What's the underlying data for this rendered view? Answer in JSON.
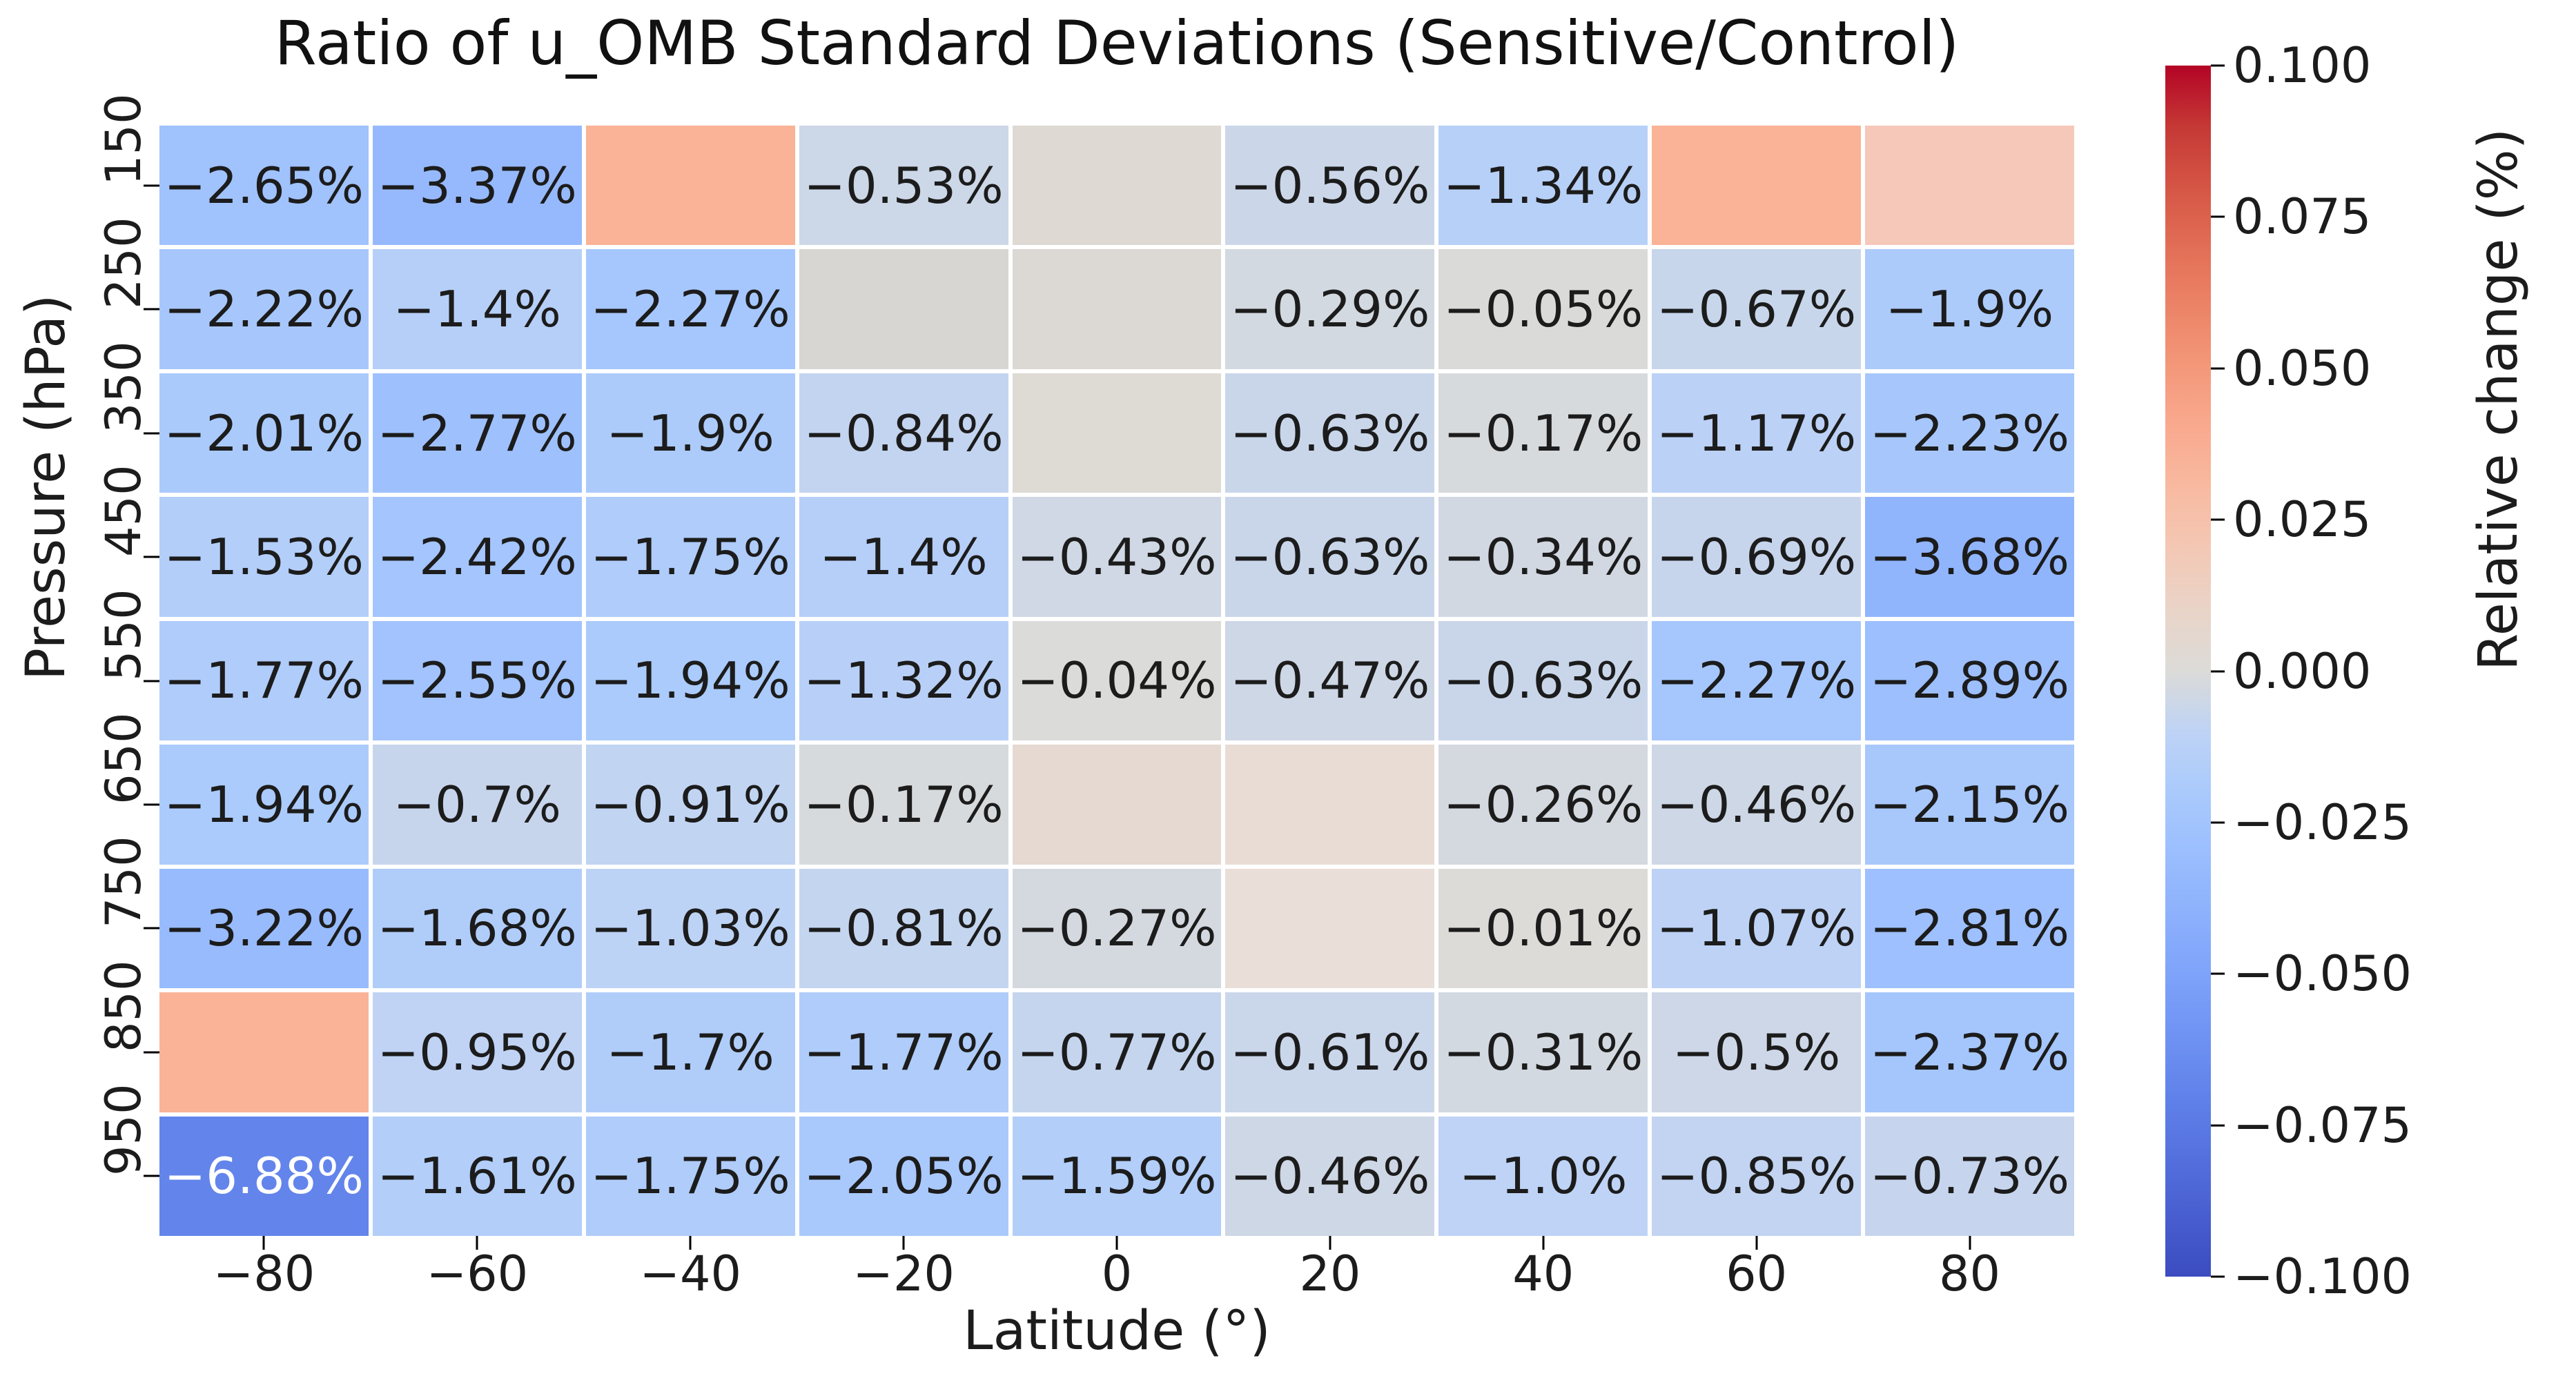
{
  "colorbar": {
    "label": "Relative change (%)",
    "ticks": [
      "0.100",
      "0.075",
      "0.050",
      "0.025",
      "0.000",
      "−0.025",
      "−0.050",
      "−0.075",
      "−0.100"
    ],
    "top_color": "#b40426",
    "zero_color": "#dcdbd8",
    "bottom_color": "#3b4cc0",
    "gradient_stops": [
      "#3b4cc0",
      "#485ed0",
      "#5571de",
      "#6182ea",
      "#6f93f3",
      "#7ea3fa",
      "#8db1fc",
      "#9bbefe",
      "#aacafc",
      "#bed3f5",
      "#dcdbd8",
      "#e9d4c8",
      "#f3c8b5",
      "#f8baa1",
      "#f9aa8f",
      "#f4987a",
      "#ec8467",
      "#e26e56",
      "#d55545",
      "#c53835",
      "#b40426"
    ]
  },
  "chart_data": {
    "type": "heatmap",
    "title": "Ratio of u_OMB Standard Deviations (Sensitive/Control)",
    "xlabel": "Latitude (°)",
    "ylabel": "Pressure (hPa)",
    "x_ticks": [
      "−80",
      "−60",
      "−40",
      "−20",
      "0",
      "20",
      "40",
      "60",
      "80"
    ],
    "y_ticks": [
      "150",
      "250",
      "350",
      "450",
      "550",
      "650",
      "750",
      "850",
      "950"
    ],
    "x": [
      -80,
      -60,
      -40,
      -20,
      0,
      20,
      40,
      60,
      80
    ],
    "y": [
      150,
      250,
      350,
      450,
      550,
      650,
      750,
      850,
      950
    ],
    "vmin": -0.1,
    "vmax": 0.1,
    "legend_position": "right",
    "grid": false,
    "values_percent": [
      [
        -2.65,
        -3.37,
        null,
        -0.53,
        null,
        -0.56,
        -1.34,
        null,
        null
      ],
      [
        -2.22,
        -1.4,
        -2.27,
        null,
        null,
        -0.29,
        -0.05,
        -0.67,
        -1.9
      ],
      [
        -2.01,
        -2.77,
        -1.9,
        -0.84,
        null,
        -0.63,
        -0.17,
        -1.17,
        -2.23
      ],
      [
        -1.53,
        -2.42,
        -1.75,
        -1.4,
        -0.43,
        -0.63,
        -0.34,
        -0.69,
        -3.68
      ],
      [
        -1.77,
        -2.55,
        -1.94,
        -1.32,
        -0.04,
        -0.47,
        -0.63,
        -2.27,
        -2.89
      ],
      [
        -1.94,
        -0.7,
        -0.91,
        -0.17,
        null,
        null,
        -0.26,
        -0.46,
        -2.15
      ],
      [
        -3.22,
        -1.68,
        -1.03,
        -0.81,
        -0.27,
        null,
        -0.01,
        -1.07,
        -2.81
      ],
      [
        null,
        -0.95,
        -1.7,
        -1.77,
        -0.77,
        -0.61,
        -0.31,
        -0.5,
        -2.37
      ],
      [
        -6.88,
        -1.61,
        -1.75,
        -2.05,
        -1.59,
        -0.46,
        -1.0,
        -0.85,
        -0.73
      ]
    ],
    "labels": [
      [
        "−2.65%",
        "−3.37%",
        "",
        "−0.53%",
        "",
        "−0.56%",
        "−1.34%",
        "",
        ""
      ],
      [
        "−2.22%",
        "−1.4%",
        "−2.27%",
        "",
        "",
        "−0.29%",
        "−0.05%",
        "−0.67%",
        "−1.9%"
      ],
      [
        "−2.01%",
        "−2.77%",
        "−1.9%",
        "−0.84%",
        "",
        "−0.63%",
        "−0.17%",
        "−1.17%",
        "−2.23%"
      ],
      [
        "−1.53%",
        "−2.42%",
        "−1.75%",
        "−1.4%",
        "−0.43%",
        "−0.63%",
        "−0.34%",
        "−0.69%",
        "−3.68%"
      ],
      [
        "−1.77%",
        "−2.55%",
        "−1.94%",
        "−1.32%",
        "−0.04%",
        "−0.47%",
        "−0.63%",
        "−2.27%",
        "−2.89%"
      ],
      [
        "−1.94%",
        "−0.7%",
        "−0.91%",
        "−0.17%",
        "",
        "",
        "−0.26%",
        "−0.46%",
        "−2.15%"
      ],
      [
        "−3.22%",
        "−1.68%",
        "−1.03%",
        "−0.81%",
        "−0.27%",
        "",
        "−0.01%",
        "−1.07%",
        "−2.81%"
      ],
      [
        "",
        "−0.95%",
        "−1.7%",
        "−1.77%",
        "−0.77%",
        "−0.61%",
        "−0.31%",
        "−0.5%",
        "−2.37%"
      ],
      [
        "−6.88%",
        "−1.61%",
        "−1.75%",
        "−2.05%",
        "−1.59%",
        "−0.46%",
        "−1.0%",
        "−0.85%",
        "−0.73%"
      ]
    ],
    "blank_cell_colors": [
      [
        null,
        null,
        "#fab396",
        null,
        "#ded9d3",
        null,
        null,
        "#fab396",
        "#f6c8ba"
      ],
      [
        null,
        null,
        null,
        "#d8d6d3",
        "#dcd8d3",
        null,
        null,
        null,
        null
      ],
      [
        null,
        null,
        null,
        null,
        "#dedad4",
        null,
        null,
        null,
        null
      ],
      [
        null,
        null,
        null,
        null,
        null,
        null,
        null,
        null,
        null
      ],
      [
        null,
        null,
        null,
        null,
        null,
        null,
        null,
        null,
        null
      ],
      [
        null,
        null,
        null,
        null,
        "#e6d9d1",
        "#e8dcd5",
        null,
        null,
        null
      ],
      [
        null,
        null,
        null,
        null,
        null,
        "#e9ded8",
        null,
        null,
        null
      ],
      [
        "#fab396",
        null,
        null,
        null,
        null,
        null,
        null,
        null,
        null
      ],
      [
        null,
        null,
        null,
        null,
        null,
        null,
        null,
        null,
        null
      ]
    ],
    "annotation_text_color": "#1c1c1c",
    "annotation_text_color_dark_cells": "#ffffff"
  }
}
